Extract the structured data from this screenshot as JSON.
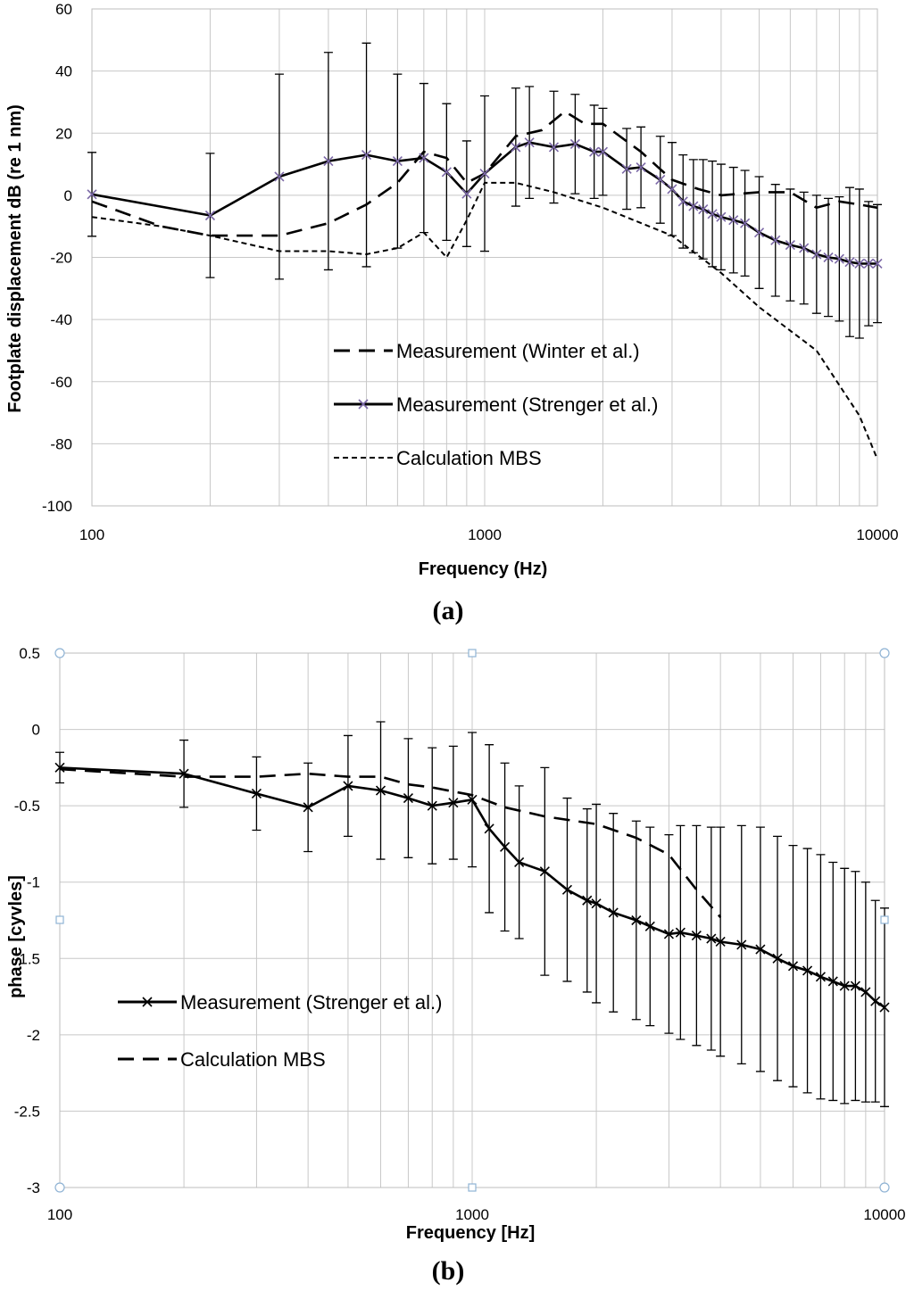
{
  "chart_data": [
    {
      "type": "line",
      "caption": "a",
      "title": "",
      "xlabel": "Frequency (Hz)",
      "ylabel": "Footplate displacement   dB (re 1 nm)",
      "xscale": "log",
      "xlim": [
        100,
        10000
      ],
      "ylim": [
        -100,
        60
      ],
      "xticks": [
        100,
        1000,
        10000
      ],
      "xtick_labels": [
        "100",
        "1000",
        "10000"
      ],
      "yticks": [
        -100,
        -80,
        -60,
        -40,
        -20,
        0,
        20,
        40,
        60
      ],
      "ytick_labels": [
        "-100",
        "-80",
        "-60",
        "-40",
        "-20",
        "0",
        "20",
        "40",
        "60"
      ],
      "grid": true,
      "legend_position": "lower-center",
      "series": [
        {
          "name": "Measurement (Winter et al.)",
          "style": "long-dash",
          "color": "#000000",
          "x": [
            100,
            150,
            200,
            300,
            400,
            500,
            600,
            700,
            800,
            900,
            1000,
            1200,
            1400,
            1600,
            1800,
            2000,
            2500,
            3000,
            3500,
            4000,
            5000,
            6000,
            7000,
            8000,
            9000,
            10000
          ],
          "y": [
            -2,
            -10,
            -13,
            -13,
            -9,
            -3,
            4,
            14,
            12,
            4,
            7,
            19,
            21,
            27,
            23,
            23,
            14,
            5,
            2,
            0,
            1,
            1,
            -4,
            -2,
            -3,
            -4
          ]
        },
        {
          "name": "Measurement (Strenger et al.)",
          "style": "solid-with-x-markers",
          "color": "#000000",
          "marker_color": "#7b68a6",
          "x": [
            100,
            200,
            300,
            400,
            500,
            600,
            700,
            800,
            900,
            1000,
            1200,
            1300,
            1500,
            1700,
            1900,
            2000,
            2300,
            2500,
            2800,
            3000,
            3200,
            3400,
            3600,
            3800,
            4000,
            4300,
            4600,
            5000,
            5500,
            6000,
            6500,
            7000,
            7500,
            8000,
            8500,
            9000,
            9500,
            10000
          ],
          "y": [
            0.3,
            -6.5,
            6,
            11,
            13,
            11,
            12,
            7.5,
            0.5,
            7,
            15.5,
            17,
            15.5,
            16.5,
            14,
            14,
            8.5,
            9,
            5,
            2,
            -2,
            -3.5,
            -4.5,
            -6,
            -7,
            -8,
            -9,
            -12,
            -14.5,
            -16,
            -17,
            -19,
            -20,
            -20.5,
            -21.5,
            -22,
            -22,
            -22
          ],
          "errors": [
            13.5,
            20,
            33,
            35,
            36,
            28,
            24,
            22,
            17,
            25,
            19,
            18,
            18,
            16,
            15,
            14,
            13,
            13,
            14,
            15,
            15,
            15,
            16,
            17,
            17,
            17,
            17,
            18,
            18,
            18,
            18,
            19,
            19,
            20,
            24,
            24,
            20,
            19
          ]
        },
        {
          "name": "Calculation MBS",
          "style": "short-dash",
          "color": "#000000",
          "x": [
            100,
            150,
            200,
            300,
            400,
            500,
            600,
            700,
            800,
            900,
            1000,
            1200,
            1500,
            2000,
            3000,
            4000,
            5000,
            7000,
            9000,
            10000
          ],
          "y": [
            -7,
            -10,
            -13,
            -18,
            -18,
            -19,
            -17,
            -12,
            -20,
            -8,
            4,
            4,
            1,
            -4,
            -13,
            -25,
            -36,
            -50,
            -71,
            -85
          ]
        }
      ]
    },
    {
      "type": "line",
      "caption": "b",
      "title": "",
      "xlabel": "Frequency [Hz]",
      "ylabel": "phase  [cyvles]",
      "xscale": "log",
      "xlim": [
        100,
        10000
      ],
      "ylim": [
        -3,
        0.5
      ],
      "xticks": [
        100,
        1000,
        10000
      ],
      "xtick_labels": [
        "100",
        "1000",
        "10000"
      ],
      "yticks": [
        -3,
        -2.5,
        -2,
        -1.5,
        -1,
        -0.5,
        0,
        0.5
      ],
      "ytick_labels": [
        "-3",
        "-2.5",
        "-2",
        "-1.5",
        "-1",
        "-0.5",
        "0",
        "0.5"
      ],
      "grid": true,
      "legend_position": "lower-left",
      "series": [
        {
          "name": "Measurement (Strenger et al.)",
          "style": "solid-with-x-markers",
          "color": "#000000",
          "marker_color": "#000000",
          "x": [
            100,
            200,
            300,
            400,
            500,
            600,
            700,
            800,
            900,
            1000,
            1100,
            1200,
            1300,
            1500,
            1700,
            1900,
            2000,
            2200,
            2500,
            2700,
            3000,
            3200,
            3500,
            3800,
            4000,
            4500,
            5000,
            5500,
            6000,
            6500,
            7000,
            7500,
            8000,
            8500,
            9000,
            9500,
            10000
          ],
          "y": [
            -0.25,
            -0.29,
            -0.42,
            -0.51,
            -0.37,
            -0.4,
            -0.45,
            -0.5,
            -0.48,
            -0.46,
            -0.65,
            -0.77,
            -0.87,
            -0.93,
            -1.05,
            -1.12,
            -1.14,
            -1.2,
            -1.25,
            -1.29,
            -1.34,
            -1.33,
            -1.35,
            -1.37,
            -1.39,
            -1.41,
            -1.44,
            -1.5,
            -1.55,
            -1.58,
            -1.62,
            -1.65,
            -1.68,
            -1.68,
            -1.72,
            -1.78,
            -1.82
          ],
          "errors": [
            0.1,
            0.22,
            0.24,
            0.29,
            0.33,
            0.45,
            0.39,
            0.38,
            0.37,
            0.44,
            0.55,
            0.55,
            0.5,
            0.68,
            0.6,
            0.6,
            0.65,
            0.65,
            0.65,
            0.65,
            0.65,
            0.7,
            0.72,
            0.73,
            0.75,
            0.78,
            0.8,
            0.8,
            0.79,
            0.8,
            0.8,
            0.78,
            0.77,
            0.75,
            0.72,
            0.66,
            0.65
          ]
        },
        {
          "name": "Calculation MBS",
          "style": "long-dash",
          "color": "#000000",
          "x": [
            100,
            200,
            300,
            400,
            500,
            600,
            700,
            800,
            1000,
            1200,
            1500,
            2000,
            2500,
            3000,
            3500,
            4000
          ],
          "y": [
            -0.26,
            -0.31,
            -0.31,
            -0.29,
            -0.31,
            -0.31,
            -0.36,
            -0.38,
            -0.43,
            -0.51,
            -0.57,
            -0.62,
            -0.71,
            -0.82,
            -1.05,
            -1.23
          ]
        }
      ]
    }
  ]
}
